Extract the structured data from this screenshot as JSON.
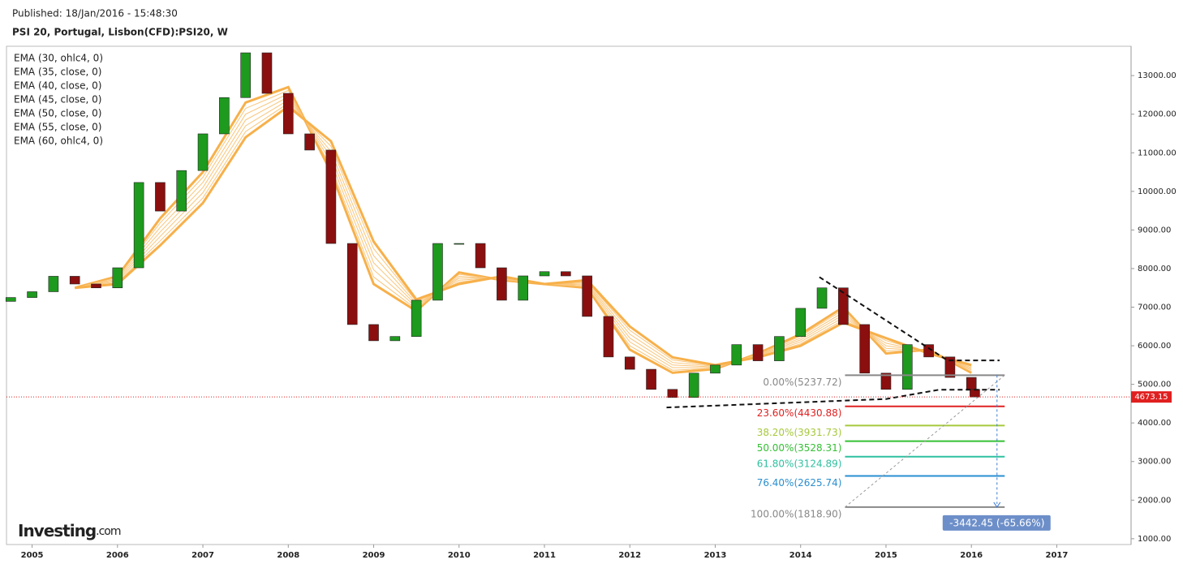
{
  "chart_data": {
    "type": "candlestick",
    "published": "Published: 18/Jan/2016 - 15:48:30",
    "title": "PSI 20, Portugal, Lisbon(CFD):PSI20, W",
    "watermark": "Investing",
    "watermark_suffix": ".com",
    "x": [
      2004.75,
      2005.0,
      2005.25,
      2005.5,
      2005.75,
      2006.0,
      2006.25,
      2006.5,
      2006.75,
      2007.0,
      2007.25,
      2007.5,
      2007.75,
      2008.0,
      2008.25,
      2008.5,
      2008.75,
      2009.0,
      2009.25,
      2009.5,
      2009.75,
      2010.0,
      2010.25,
      2010.5,
      2010.75,
      2011.0,
      2011.25,
      2011.5,
      2011.75,
      2012.0,
      2012.25,
      2012.5,
      2012.75,
      2013.0,
      2013.25,
      2013.5,
      2013.75,
      2014.0,
      2014.25,
      2014.5,
      2014.75,
      2015.0,
      2015.25,
      2015.5,
      2015.75,
      2016.0,
      2016.04
    ],
    "open": [
      7150,
      7250,
      7400,
      7800,
      7600,
      7500,
      8020,
      10230,
      9490,
      10540,
      11490,
      12430,
      13590,
      12540,
      11490,
      11070,
      8650,
      6550,
      6130,
      6240,
      7180,
      8650,
      8650,
      8020,
      7180,
      7810,
      7920,
      7810,
      6760,
      5710,
      5390,
      4870,
      4660,
      5290,
      5500,
      6030,
      5610,
      6240,
      6970,
      7500,
      6550,
      5290,
      4870,
      6030,
      5710,
      5180,
      4870
    ],
    "close": [
      7250,
      7400,
      7800,
      7600,
      7500,
      8020,
      10230,
      9490,
      10540,
      11490,
      12430,
      13590,
      12540,
      11490,
      11070,
      8650,
      6550,
      6130,
      6240,
      7180,
      8650,
      8650,
      8020,
      7180,
      7810,
      7920,
      7810,
      6760,
      5710,
      5390,
      4870,
      4660,
      5290,
      5500,
      6030,
      5610,
      6240,
      6970,
      7500,
      6550,
      5290,
      4870,
      6030,
      5710,
      5180,
      4870,
      4673.15
    ],
    "up_color": "#1e9a1e",
    "down_color": "#8b0f0f",
    "last_price": 4673.15,
    "last_price_label": "4673.15",
    "last_price_color": "#e02020",
    "ema_x": [
      2005.5,
      2006.0,
      2006.5,
      2007.0,
      2007.5,
      2008.0,
      2008.5,
      2009.0,
      2009.5,
      2010.0,
      2010.5,
      2011.0,
      2011.5,
      2012.0,
      2012.5,
      2013.0,
      2013.5,
      2014.0,
      2014.5,
      2015.0,
      2015.5,
      2016.0
    ],
    "ema": [
      {
        "name": "EMA (30, ohlc4, 0)",
        "color": "#f7b04a",
        "values": [
          7500,
          7800,
          9300,
          10500,
          12300,
          12700,
          10500,
          7600,
          6900,
          7900,
          7700,
          7600,
          7500,
          5900,
          5300,
          5400,
          5800,
          6300,
          7000,
          5800,
          5900,
          5300
        ]
      },
      {
        "name": "EMA (35, close, 0)",
        "color": "#f9c57a",
        "values": [
          7500,
          7767,
          9183,
          10367,
          12150,
          12617,
          10633,
          7783,
          6950,
          7850,
          7717,
          7600,
          7533,
          6000,
          5367,
          5417,
          5783,
          6250,
          6933,
          5867,
          5883,
          5333
        ]
      },
      {
        "name": "EMA (40, close, 0)",
        "color": "#f9c57a",
        "values": [
          7500,
          7733,
          9067,
          10233,
          12000,
          12533,
          10767,
          7967,
          7000,
          7800,
          7733,
          7600,
          7567,
          6100,
          5433,
          5433,
          5767,
          6200,
          6867,
          5933,
          5867,
          5367
        ]
      },
      {
        "name": "EMA (45, close, 0)",
        "color": "#f9c57a",
        "values": [
          7500,
          7700,
          8950,
          10100,
          11850,
          12450,
          10900,
          8150,
          7050,
          7750,
          7750,
          7600,
          7600,
          6200,
          5500,
          5450,
          5750,
          6150,
          6800,
          6000,
          5850,
          5400
        ]
      },
      {
        "name": "EMA (50, close, 0)",
        "color": "#f9c57a",
        "values": [
          7500,
          7667,
          8833,
          9967,
          11700,
          12367,
          11033,
          8333,
          7100,
          7700,
          7767,
          7600,
          7633,
          6300,
          5567,
          5467,
          5733,
          6100,
          6733,
          6067,
          5833,
          5433
        ]
      },
      {
        "name": "EMA (55, close, 0)",
        "color": "#f9c57a",
        "values": [
          7500,
          7633,
          8717,
          9833,
          11550,
          12283,
          11167,
          8517,
          7150,
          7650,
          7783,
          7600,
          7667,
          6400,
          5633,
          5483,
          5717,
          6050,
          6667,
          6133,
          5817,
          5467
        ]
      },
      {
        "name": "EMA (60, ohlc4, 0)",
        "color": "#f7b04a",
        "values": [
          7500,
          7600,
          8600,
          9700,
          11400,
          12200,
          11300,
          8700,
          7200,
          7600,
          7800,
          7600,
          7700,
          6500,
          5700,
          5500,
          5700,
          6000,
          6600,
          6200,
          5800,
          5500
        ]
      }
    ],
    "fib_x": [
      2014.52,
      2016.39
    ],
    "fib": [
      {
        "label": "0.00%(5237.72)",
        "value": 5237.72,
        "color": "#888888"
      },
      {
        "label": "23.60%(4430.88)",
        "value": 4430.88,
        "color": "#e02020"
      },
      {
        "label": "38.20%(3931.73)",
        "value": 3931.73,
        "color": "#a6c93c"
      },
      {
        "label": "50.00%(3528.31)",
        "value": 3528.31,
        "color": "#35c035"
      },
      {
        "label": "61.80%(3124.89)",
        "value": 3124.89,
        "color": "#2fc0a0"
      },
      {
        "label": "76.40%(2625.74)",
        "value": 2625.74,
        "color": "#2a8fd0"
      },
      {
        "label": "100.00%(1818.90)",
        "value": 1818.9,
        "color": "#888888"
      }
    ],
    "change_label": "-3442.45 (-65.66%)",
    "change_x": 2016.3,
    "trendlines": [
      {
        "points": [
          [
            2014.22,
            7780
          ],
          [
            2015.72,
            5620
          ],
          [
            2016.33,
            5620
          ]
        ]
      },
      {
        "points": [
          [
            2012.43,
            4400
          ],
          [
            2015.0,
            4620
          ],
          [
            2015.62,
            4860
          ],
          [
            2016.33,
            4860
          ]
        ]
      }
    ],
    "xlim": [
      2004.7,
      2017.87
    ],
    "xticks": [
      2005,
      2006,
      2007,
      2008,
      2009,
      2010,
      2011,
      2012,
      2013,
      2014,
      2015,
      2016,
      2017
    ],
    "ylim": [
      850,
      13760
    ],
    "yticks": [
      {
        "value": 1000,
        "label": "1000.00"
      },
      {
        "value": 2000,
        "label": "2000.00"
      },
      {
        "value": 3000,
        "label": "3000.00"
      },
      {
        "value": 4000,
        "label": "4000.00"
      },
      {
        "value": 5000,
        "label": "5000.00"
      },
      {
        "value": 6000,
        "label": "6000.00"
      },
      {
        "value": 7000,
        "label": "7000.00"
      },
      {
        "value": 8000,
        "label": "8000.00"
      },
      {
        "value": 9000,
        "label": "9000.00"
      },
      {
        "value": 10000,
        "label": "10000.00"
      },
      {
        "value": 11000,
        "label": "11000.00"
      },
      {
        "value": 12000,
        "label": "12000.00"
      },
      {
        "value": 13000,
        "label": "13000.00"
      }
    ]
  }
}
